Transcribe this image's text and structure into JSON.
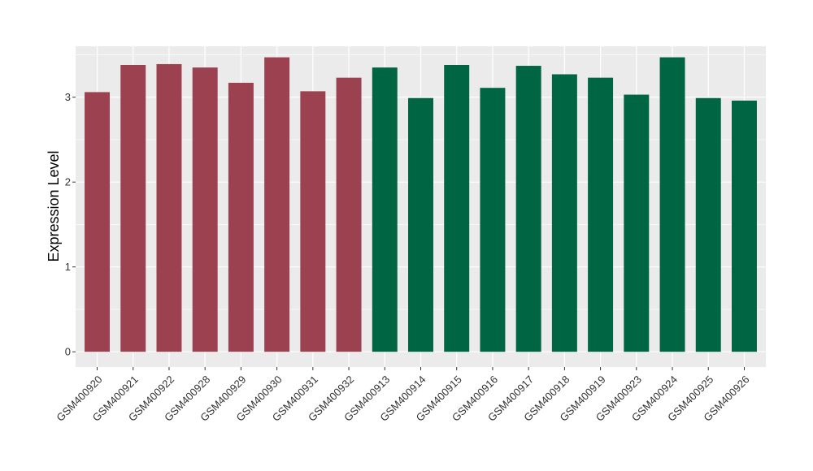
{
  "chart_data": {
    "type": "bar",
    "title": "",
    "xlabel": "",
    "ylabel": "Expression Level",
    "ylim": [
      -0.18,
      3.6
    ],
    "yticks": [
      0,
      1,
      2,
      3
    ],
    "grid": true,
    "legend": "none",
    "categories": [
      "GSM400920",
      "GSM400921",
      "GSM400922",
      "GSM400928",
      "GSM400929",
      "GSM400930",
      "GSM400931",
      "GSM400932",
      "GSM400913",
      "GSM400914",
      "GSM400915",
      "GSM400916",
      "GSM400917",
      "GSM400918",
      "GSM400919",
      "GSM400923",
      "GSM400924",
      "GSM400925",
      "GSM400926"
    ],
    "values": [
      3.06,
      3.38,
      3.39,
      3.35,
      3.17,
      3.47,
      3.07,
      3.23,
      3.35,
      2.99,
      3.38,
      3.11,
      3.37,
      3.27,
      3.23,
      3.03,
      3.47,
      2.99,
      2.96
    ],
    "groups": [
      0,
      0,
      0,
      0,
      0,
      0,
      0,
      0,
      1,
      1,
      1,
      1,
      1,
      1,
      1,
      1,
      1,
      1,
      1
    ],
    "group_colors": [
      "#9B4150",
      "#006543"
    ],
    "panel_color": "#EBEBEB",
    "grid_color": "#FFFFFF"
  }
}
